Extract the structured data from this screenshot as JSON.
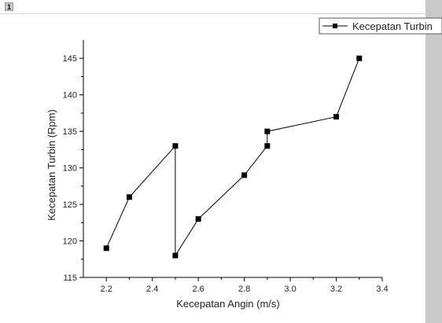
{
  "layer_badge": "1",
  "chart_data": {
    "type": "line",
    "xlabel": "Kecepatan Angin (m/s)",
    "ylabel": "Kecepatan Turbin (Rpm)",
    "xlim": [
      2.1,
      3.4
    ],
    "ylim": [
      115,
      147.5
    ],
    "x_ticks": [
      2.2,
      2.4,
      2.6,
      2.8,
      3.0,
      3.2,
      3.4
    ],
    "x_tick_labels": [
      "2.2",
      "2.4",
      "2.6",
      "2.8",
      "3.0",
      "3.2",
      "3.4"
    ],
    "y_ticks": [
      115,
      120,
      125,
      130,
      135,
      140,
      145
    ],
    "y_tick_labels": [
      "115",
      "120",
      "125",
      "130",
      "135",
      "140",
      "145"
    ],
    "grid": false,
    "legend_position": "top-right",
    "marker": "square",
    "line_color": "#000000",
    "series": [
      {
        "name": "Kecepatan Turbin",
        "x": [
          2.2,
          2.3,
          2.5,
          2.5,
          2.6,
          2.8,
          2.9,
          2.9,
          3.2,
          3.3
        ],
        "y": [
          119,
          126,
          133,
          118,
          123,
          129,
          133,
          135,
          137,
          145
        ]
      }
    ]
  }
}
